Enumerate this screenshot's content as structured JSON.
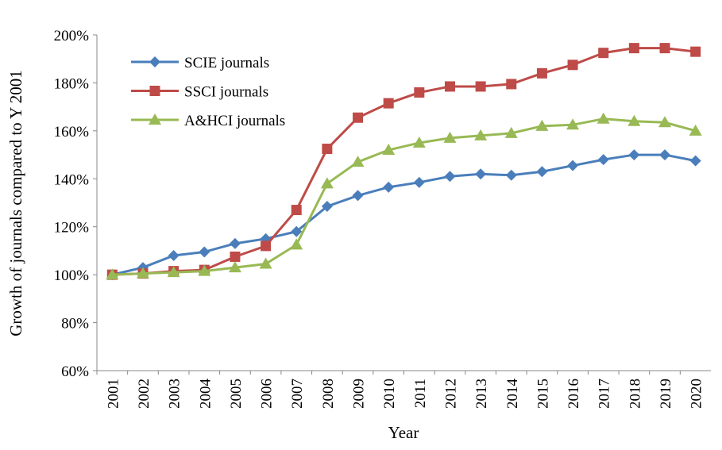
{
  "chart_data": {
    "type": "line",
    "x_label": "Year",
    "y_label": "Growth of journals compared to Y 2001",
    "categories": [
      "2001",
      "2002",
      "2003",
      "2004",
      "2005",
      "2006",
      "2007",
      "2008",
      "2009",
      "2010",
      "2011",
      "2012",
      "2013",
      "2014",
      "2015",
      "2016",
      "2017",
      "2018",
      "2019",
      "2020"
    ],
    "series": [
      {
        "name": "SCIE journals",
        "color": "#4a7ebb",
        "marker": "diamond",
        "values": [
          100,
          103,
          108,
          109.5,
          113,
          115,
          118,
          128.5,
          133,
          136.5,
          138.5,
          141,
          142,
          141.5,
          143,
          145.5,
          148,
          150,
          150,
          147.5
        ]
      },
      {
        "name": "SSCI journals",
        "color": "#be4b48",
        "marker": "square",
        "values": [
          100,
          100.5,
          101.5,
          102,
          107.5,
          112,
          127,
          152.5,
          165.5,
          171.5,
          176,
          178.5,
          178.5,
          179.5,
          184,
          187.5,
          192.5,
          194.5,
          194.5,
          193
        ]
      },
      {
        "name": "A&HCI journals",
        "color": "#98b954",
        "marker": "triangle",
        "values": [
          100,
          100.5,
          101,
          101.5,
          103,
          104.5,
          112.5,
          138,
          147,
          152,
          155,
          157,
          158,
          159,
          162,
          162.5,
          165,
          164,
          163.5,
          160
        ]
      }
    ],
    "ylim": [
      60,
      200
    ],
    "yticks": [
      {
        "value": 60,
        "label": "60%"
      },
      {
        "value": 80,
        "label": "80%"
      },
      {
        "value": 100,
        "label": "100%"
      },
      {
        "value": 120,
        "label": "120%"
      },
      {
        "value": 140,
        "label": "140%"
      },
      {
        "value": 160,
        "label": "160%"
      },
      {
        "value": 180,
        "label": "180%"
      },
      {
        "value": 200,
        "label": "200%"
      }
    ],
    "grid": false,
    "legend": "upper left"
  }
}
